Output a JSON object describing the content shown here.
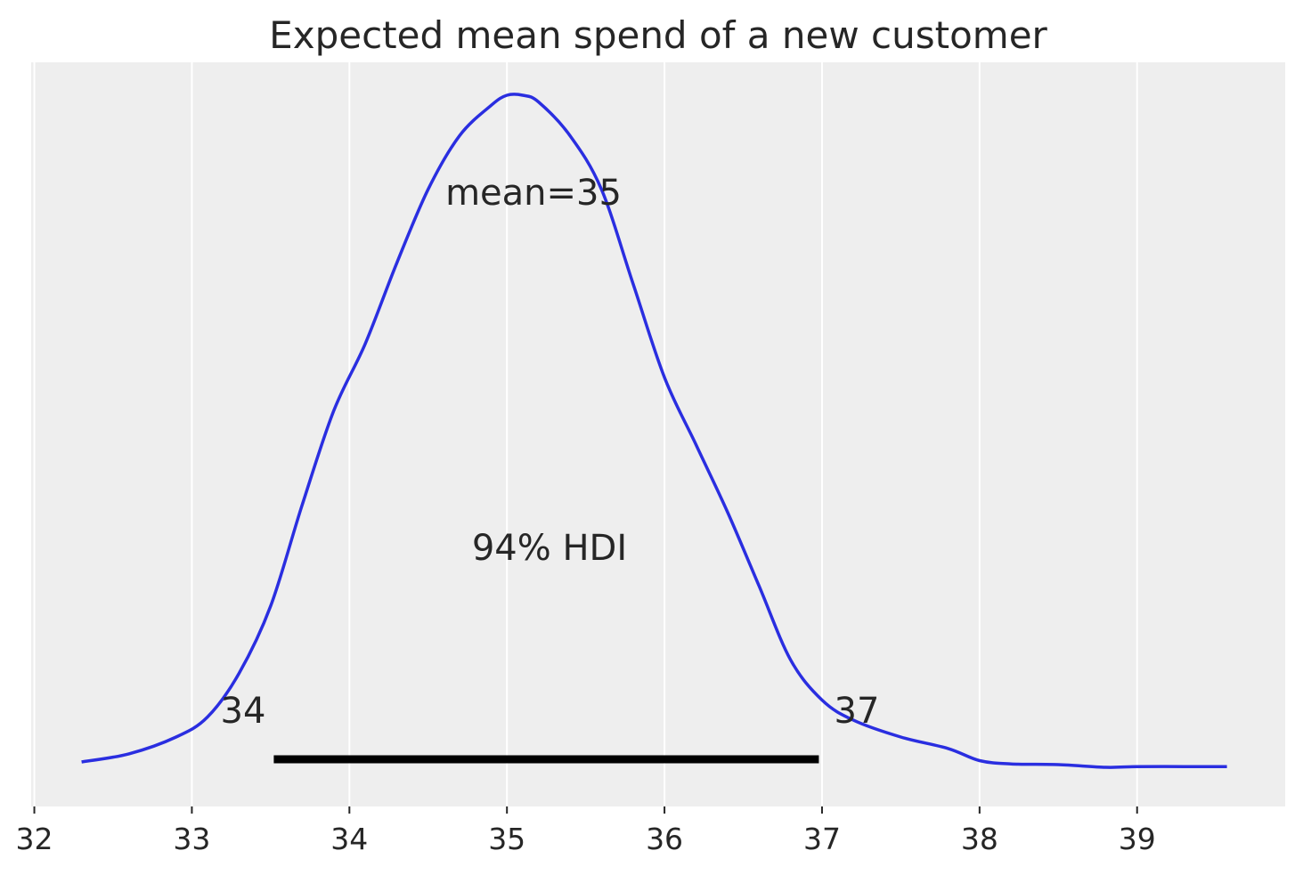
{
  "chart_data": {
    "type": "line",
    "title": "Expected mean spend of a new customer",
    "xlabel": "",
    "ylabel": "",
    "xlim": [
      31.98,
      39.94
    ],
    "ylim": [
      0,
      1.0
    ],
    "xticks": [
      "32",
      "33",
      "34",
      "35",
      "36",
      "37",
      "38",
      "39"
    ],
    "grid": "vertical",
    "series": [
      {
        "color": "#2a2ee0",
        "x": [
          32.3,
          32.6,
          32.9,
          33.1,
          33.3,
          33.5,
          33.7,
          33.9,
          34.1,
          34.3,
          34.5,
          34.7,
          34.9,
          35.0,
          35.1,
          35.2,
          35.4,
          35.6,
          35.8,
          36.0,
          36.2,
          36.4,
          36.6,
          36.8,
          37.0,
          37.2,
          37.5,
          37.8,
          38.0,
          38.2,
          38.5,
          38.8,
          39.0,
          39.3,
          39.57
        ],
        "y": [
          0.008,
          0.02,
          0.045,
          0.075,
          0.14,
          0.24,
          0.39,
          0.53,
          0.63,
          0.75,
          0.86,
          0.94,
          0.985,
          1.0,
          1.0,
          0.99,
          0.94,
          0.86,
          0.72,
          0.58,
          0.48,
          0.38,
          0.27,
          0.16,
          0.1,
          0.07,
          0.045,
          0.028,
          0.01,
          0.005,
          0.004,
          0.0,
          0.001,
          0.001,
          0.001
        ]
      }
    ],
    "point_estimate": {
      "label": "mean=35",
      "value": 35
    },
    "hdi": {
      "label": "94% HDI",
      "prob": 0.94,
      "low": 33.52,
      "high": 36.98,
      "low_label": "34",
      "high_label": "37"
    }
  }
}
